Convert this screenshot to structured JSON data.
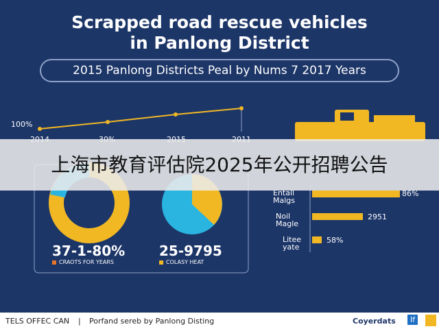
{
  "header": {
    "title_line1": "Scrapped road rescue vehicles",
    "title_line2": "in Panlong District",
    "subtitle": "2015 Panlong Districts Peal by Nums 7 2017 Years"
  },
  "line_chart": {
    "y_label": "100%",
    "x_labels": [
      "2014",
      "30%",
      "2015",
      "2011"
    ]
  },
  "banner": {
    "text": "上海市教育评估院2025年公开招聘公告"
  },
  "donut_panel": {
    "stats": [
      {
        "value": "37-1-80%",
        "legend": "CRAOTS FOR YEARS"
      },
      {
        "value": "25-9795",
        "legend": "COLASY HEAT"
      }
    ]
  },
  "bar_panel": {
    "rows": [
      {
        "label": "Entall Malgs",
        "value": "86%"
      },
      {
        "label": "Noil Magle",
        "value": "2951"
      },
      {
        "label": "Litee yate",
        "value": "58%"
      }
    ]
  },
  "footer": {
    "left": "TELS OFFEC CAN",
    "separator": "|",
    "credit": "Porfand sereb by Panlong Disting",
    "brand": "Coyerdats",
    "icon": "If"
  }
}
